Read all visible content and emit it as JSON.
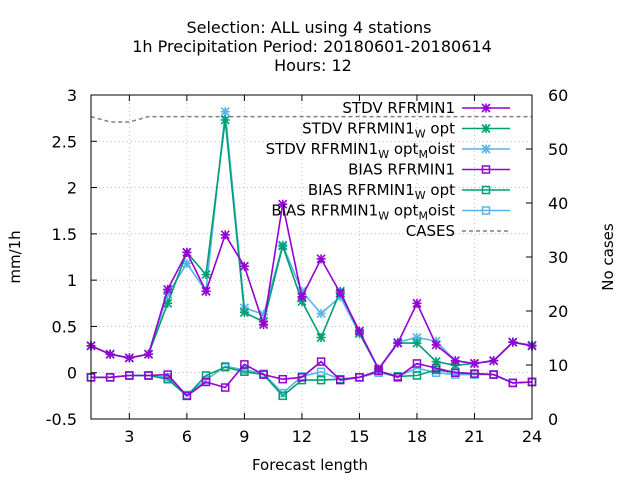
{
  "chart_data": {
    "type": "line",
    "title_lines": [
      "Selection: ALL using     4 stations",
      "1h Precipitation   Period: 20180601-20180614",
      "Hours:  12"
    ],
    "xlabel": "Forecast length",
    "ylabel": "mm/1h",
    "y2label": "No cases",
    "xlim": [
      1,
      24
    ],
    "ylim": [
      -0.5,
      3
    ],
    "y2lim": [
      0,
      60
    ],
    "xticks": [
      3,
      6,
      9,
      12,
      15,
      18,
      21,
      24
    ],
    "yticks": [
      -0.5,
      0,
      0.5,
      1,
      1.5,
      2,
      2.5,
      3
    ],
    "y2ticks": [
      0,
      10,
      20,
      30,
      40,
      50,
      60
    ],
    "grid": true,
    "legend_position": "top-right",
    "x": [
      1,
      2,
      3,
      4,
      5,
      6,
      7,
      8,
      9,
      10,
      11,
      12,
      13,
      14,
      15,
      16,
      17,
      18,
      19,
      20,
      21,
      22,
      23,
      24
    ],
    "series": [
      {
        "name": "STDV RFRMIN1",
        "name_parts": [
          [
            "STDV RFRMIN1",
            ""
          ]
        ],
        "color": "#9400d3",
        "marker": "star",
        "axis": "y1",
        "values": [
          0.29,
          0.2,
          0.16,
          0.2,
          0.9,
          1.3,
          0.88,
          1.49,
          1.15,
          0.52,
          1.82,
          0.82,
          1.23,
          0.86,
          0.45,
          0.04,
          0.32,
          0.75,
          0.3,
          0.13,
          0.1,
          0.13,
          0.33,
          0.29
        ]
      },
      {
        "name": "STDV RFRMIN1_W opt",
        "name_parts": [
          [
            "STDV RFRMIN1",
            ""
          ],
          [
            "W",
            "sub"
          ],
          [
            " opt",
            ""
          ]
        ],
        "color": "#009e73",
        "marker": "star",
        "axis": "y1",
        "values": [
          0.29,
          0.2,
          0.16,
          0.2,
          0.75,
          1.3,
          1.06,
          2.73,
          0.65,
          0.55,
          1.37,
          0.77,
          0.38,
          0.88,
          0.43,
          0.04,
          0.32,
          0.32,
          0.12,
          0.08,
          0.1,
          0.13,
          0.33,
          0.29
        ]
      },
      {
        "name": "STDV RFRMIN1_W opt_M oist",
        "name_parts": [
          [
            "STDV RFRMIN1",
            ""
          ],
          [
            "W",
            "sub"
          ],
          [
            " opt",
            ""
          ],
          [
            "M",
            "sub"
          ],
          [
            "oist",
            ""
          ]
        ],
        "color": "#56b4e9",
        "marker": "star",
        "axis": "y1",
        "values": [
          0.29,
          0.2,
          0.16,
          0.2,
          0.85,
          1.18,
          0.88,
          2.82,
          0.7,
          0.63,
          1.38,
          0.88,
          0.64,
          0.82,
          0.42,
          0.04,
          0.33,
          0.38,
          0.34,
          0.13,
          0.1,
          0.13,
          0.33,
          0.3
        ]
      },
      {
        "name": "BIAS RFRMIN1",
        "name_parts": [
          [
            "BIAS RFRMIN1",
            ""
          ]
        ],
        "color": "#9400d3",
        "marker": "square",
        "axis": "y1",
        "values": [
          -0.05,
          -0.05,
          -0.03,
          -0.03,
          -0.02,
          -0.25,
          -0.1,
          -0.16,
          0.09,
          -0.02,
          -0.07,
          -0.05,
          0.12,
          -0.08,
          -0.05,
          0.02,
          -0.05,
          0.1,
          0.05,
          0.0,
          -0.01,
          -0.02,
          -0.11,
          -0.1
        ]
      },
      {
        "name": "BIAS RFRMIN1_W opt",
        "name_parts": [
          [
            "BIAS RFRMIN1",
            ""
          ],
          [
            "W",
            "sub"
          ],
          [
            " opt",
            ""
          ]
        ],
        "color": "#009e73",
        "marker": "square",
        "axis": "y1",
        "values": [
          -0.05,
          -0.05,
          -0.03,
          -0.03,
          -0.07,
          -0.25,
          -0.03,
          0.06,
          0.01,
          -0.02,
          -0.25,
          -0.08,
          -0.08,
          -0.07,
          -0.05,
          0.02,
          -0.04,
          -0.03,
          0.03,
          0.0,
          -0.01,
          -0.02,
          -0.11,
          -0.1
        ]
      },
      {
        "name": "BIAS RFRMIN1_W opt_M oist",
        "name_parts": [
          [
            "BIAS RFRMIN1",
            ""
          ],
          [
            "W",
            "sub"
          ],
          [
            " opt",
            ""
          ],
          [
            "M",
            "sub"
          ],
          [
            "oist",
            ""
          ]
        ],
        "color": "#56b4e9",
        "marker": "square",
        "axis": "y1",
        "values": [
          -0.05,
          -0.05,
          -0.03,
          -0.03,
          -0.05,
          -0.24,
          -0.08,
          0.07,
          0.03,
          -0.01,
          -0.22,
          -0.04,
          0.01,
          -0.07,
          -0.05,
          0.0,
          -0.04,
          0.05,
          0.0,
          -0.02,
          -0.02,
          -0.02,
          -0.11,
          -0.1
        ]
      },
      {
        "name": "CASES",
        "name_parts": [
          [
            "CASES",
            ""
          ]
        ],
        "color": "#808080",
        "marker": "none",
        "dash": true,
        "axis": "y2",
        "values": [
          56,
          55,
          55,
          56,
          56,
          56,
          56,
          56,
          56,
          56,
          56,
          56,
          56,
          56,
          56,
          56,
          56,
          56,
          56,
          56,
          56,
          56,
          56,
          56
        ]
      }
    ]
  }
}
